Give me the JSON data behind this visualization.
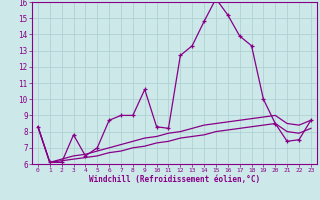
{
  "xlabel": "Windchill (Refroidissement éolien,°C)",
  "background_color": "#cce8e8",
  "grid_color": "#aacece",
  "line_color": "#880088",
  "x": [
    0,
    1,
    2,
    3,
    4,
    5,
    6,
    7,
    8,
    9,
    10,
    11,
    12,
    13,
    14,
    15,
    16,
    17,
    18,
    19,
    20,
    21,
    22,
    23
  ],
  "y_main": [
    8.3,
    6.1,
    6.1,
    7.8,
    6.5,
    7.0,
    8.7,
    9.0,
    9.0,
    10.6,
    8.3,
    8.2,
    12.7,
    13.3,
    14.8,
    16.2,
    15.2,
    13.9,
    13.3,
    10.0,
    8.5,
    7.4,
    7.5,
    8.7
  ],
  "y_line1": [
    8.3,
    6.1,
    6.3,
    6.5,
    6.6,
    6.8,
    7.0,
    7.2,
    7.4,
    7.6,
    7.7,
    7.9,
    8.0,
    8.2,
    8.4,
    8.5,
    8.6,
    8.7,
    8.8,
    8.9,
    9.0,
    8.5,
    8.4,
    8.7
  ],
  "y_line2": [
    8.3,
    6.1,
    6.2,
    6.3,
    6.4,
    6.5,
    6.7,
    6.8,
    7.0,
    7.1,
    7.3,
    7.4,
    7.6,
    7.7,
    7.8,
    8.0,
    8.1,
    8.2,
    8.3,
    8.4,
    8.5,
    8.0,
    7.9,
    8.2
  ],
  "ylim": [
    6,
    16
  ],
  "xlim": [
    -0.5,
    23.5
  ],
  "yticks": [
    6,
    7,
    8,
    9,
    10,
    11,
    12,
    13,
    14,
    15,
    16
  ]
}
